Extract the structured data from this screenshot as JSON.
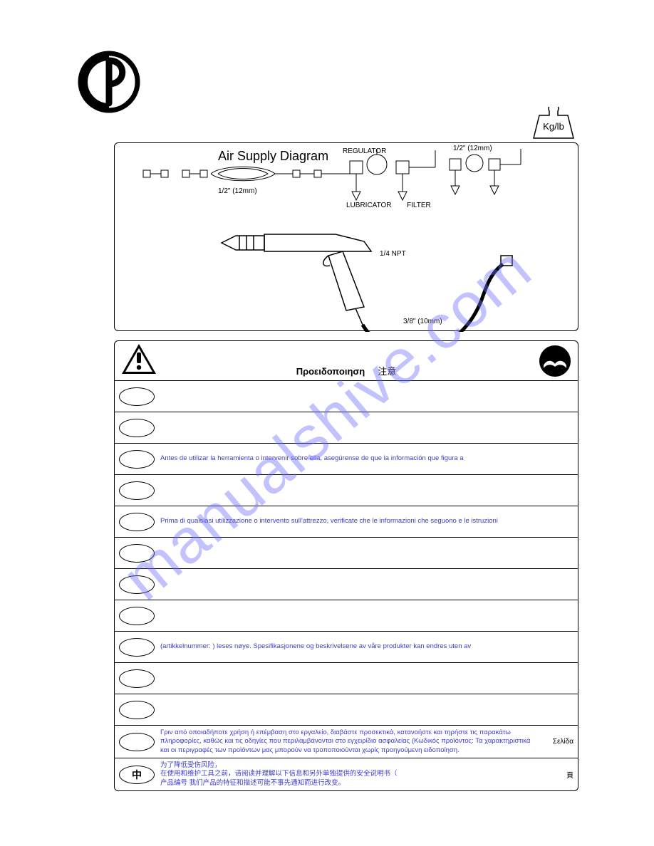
{
  "logo": {
    "letters": "CP"
  },
  "weight_badge": {
    "label": "Kg/lb"
  },
  "diagram": {
    "title": "Air Supply Diagram",
    "labels": {
      "regulator": "REGULATOR",
      "lubricator": "LUBRICATOR",
      "filter": "FILTER",
      "half_inch_top": "1/2\" (12mm)",
      "half_inch_hose": "1/2\" (12mm)",
      "quarter_npt": "1/4 NPT",
      "three_eighths": "3/8\" (10mm)"
    }
  },
  "warning_header": {
    "greek": "Προειδοποιηση",
    "cjk": "注意"
  },
  "rows": [
    {
      "oval": "",
      "text": "",
      "page": ""
    },
    {
      "oval": "",
      "text": "",
      "page": ""
    },
    {
      "oval": "",
      "text": "Antes de utilizar la herramienta o intervenir sobre ella, asegúrense de que la información que figura a",
      "page": ""
    },
    {
      "oval": "",
      "text": "",
      "page": ""
    },
    {
      "oval": "",
      "text": "Prima di qualsiasi utilizzazione o intervento sull'attrezzo, verificate che le informazioni che seguono e le istruzioni",
      "page": ""
    },
    {
      "oval": "",
      "text": "",
      "page": ""
    },
    {
      "oval": "",
      "text": "",
      "page": ""
    },
    {
      "oval": "",
      "text": "",
      "page": ""
    },
    {
      "oval": "",
      "text": "(artikkelnummer:            ) leses nøye. Spesifikasjonene og beskrivelsene av våre produkter kan endres uten av",
      "page": ""
    },
    {
      "oval": "",
      "text": "",
      "page": ""
    },
    {
      "oval": "",
      "text": "",
      "page": ""
    },
    {
      "oval": "",
      "text": "Γριν από οποιαδήποτε χρήση ή επέμβαση στο εργαλείο, διαβάστε προσεκτικά, κατανοήστε και τηρήστε τις παρακάτω πληροφορίες, καθώς και τις οδηγίες που περιλαμβάνονται στο εγχειρίδιο ασφαλείας (Κωδικός προϊόντος:        Τα χαρακτηριστικά και οι περιγραφές των προϊόντων μας μπορούν να τροποποιούνται χωρίς προηγούμενη ειδοποίηση.",
      "page": "Σελίδα"
    },
    {
      "oval": "中",
      "text": "为了降低受伤风险，\n在使用和维护工具之前，请阅读并理解以下信息和另外单独提供的安全说明书（\n产品编号            我们产品的特征和描述可能不事先通知而进行改变。",
      "page": "頁"
    }
  ],
  "colors": {
    "link": "#3b3ccf",
    "watermark": "rgba(110,110,255,0.42)"
  },
  "watermark": "manualshive.com"
}
